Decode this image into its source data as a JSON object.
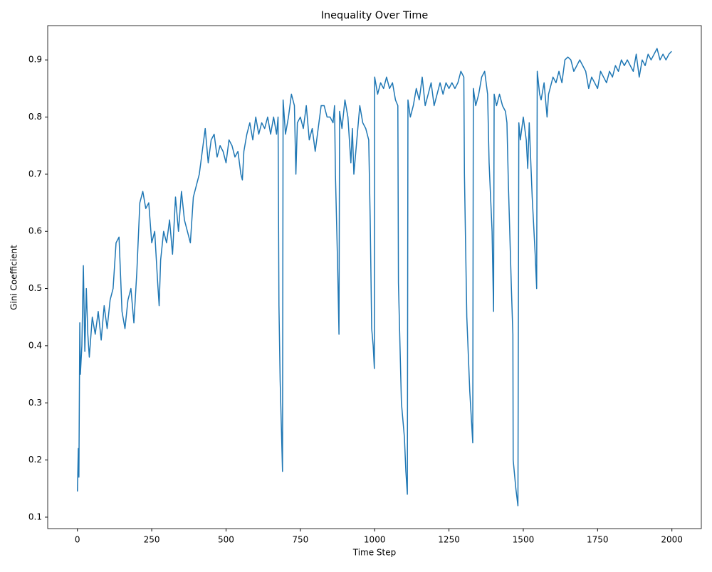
{
  "chart_data": {
    "type": "line",
    "title": "Inequality Over Time",
    "x_label": "Time Step",
    "y_label": "Gini Coefficient",
    "xlim": [
      -99.95,
      2098.95
    ],
    "ylim": [
      0.08,
      0.96
    ],
    "xticks": [
      0,
      250,
      500,
      750,
      1000,
      1250,
      1500,
      1750,
      2000
    ],
    "yticks": [
      0.1,
      0.2,
      0.3,
      0.4,
      0.5,
      0.6,
      0.7,
      0.8,
      0.9
    ],
    "series": [
      {
        "color": "#1f77b4",
        "x": [
          0,
          3,
          5,
          8,
          10,
          15,
          20,
          25,
          30,
          35,
          40,
          50,
          60,
          70,
          80,
          90,
          100,
          110,
          120,
          130,
          140,
          150,
          160,
          170,
          180,
          190,
          200,
          210,
          220,
          230,
          240,
          250,
          260,
          270,
          275,
          280,
          290,
          300,
          310,
          320,
          330,
          340,
          350,
          360,
          370,
          380,
          390,
          400,
          410,
          420,
          430,
          440,
          450,
          460,
          470,
          480,
          490,
          500,
          510,
          520,
          530,
          540,
          550,
          555,
          560,
          570,
          580,
          590,
          600,
          610,
          620,
          630,
          640,
          650,
          660,
          670,
          675,
          678,
          682,
          690,
          692,
          700,
          710,
          720,
          730,
          735,
          740,
          750,
          760,
          770,
          780,
          790,
          800,
          810,
          820,
          830,
          840,
          850,
          860,
          865,
          868,
          875,
          880,
          882,
          890,
          900,
          910,
          920,
          925,
          930,
          940,
          950,
          960,
          970,
          980,
          985,
          990,
          995,
          999,
          1000,
          1010,
          1020,
          1030,
          1040,
          1050,
          1060,
          1070,
          1078,
          1080,
          1090,
          1100,
          1105,
          1110,
          1112,
          1120,
          1130,
          1140,
          1150,
          1160,
          1170,
          1180,
          1190,
          1200,
          1210,
          1220,
          1230,
          1240,
          1250,
          1260,
          1270,
          1280,
          1290,
          1300,
          1302,
          1310,
          1320,
          1330,
          1332,
          1340,
          1350,
          1360,
          1370,
          1380,
          1385,
          1395,
          1400,
          1402,
          1410,
          1420,
          1430,
          1440,
          1445,
          1450,
          1460,
          1465,
          1466,
          1475,
          1482,
          1485,
          1490,
          1500,
          1510,
          1515,
          1520,
          1530,
          1540,
          1545,
          1547,
          1555,
          1560,
          1570,
          1580,
          1585,
          1600,
          1610,
          1620,
          1630,
          1640,
          1650,
          1660,
          1670,
          1680,
          1690,
          1700,
          1710,
          1720,
          1730,
          1740,
          1750,
          1760,
          1770,
          1780,
          1790,
          1800,
          1810,
          1820,
          1830,
          1840,
          1850,
          1860,
          1870,
          1880,
          1890,
          1900,
          1910,
          1920,
          1930,
          1940,
          1950,
          1960,
          1970,
          1980,
          1990,
          1999
        ],
        "values": [
          0.145,
          0.22,
          0.17,
          0.44,
          0.35,
          0.4,
          0.54,
          0.39,
          0.5,
          0.42,
          0.38,
          0.45,
          0.42,
          0.46,
          0.41,
          0.47,
          0.43,
          0.48,
          0.5,
          0.58,
          0.59,
          0.46,
          0.43,
          0.48,
          0.5,
          0.44,
          0.53,
          0.65,
          0.67,
          0.64,
          0.65,
          0.58,
          0.6,
          0.51,
          0.47,
          0.55,
          0.6,
          0.58,
          0.62,
          0.56,
          0.66,
          0.6,
          0.67,
          0.62,
          0.6,
          0.58,
          0.66,
          0.68,
          0.7,
          0.74,
          0.78,
          0.72,
          0.76,
          0.77,
          0.73,
          0.75,
          0.74,
          0.72,
          0.76,
          0.75,
          0.73,
          0.74,
          0.7,
          0.69,
          0.74,
          0.77,
          0.79,
          0.76,
          0.8,
          0.77,
          0.79,
          0.78,
          0.8,
          0.77,
          0.8,
          0.77,
          0.8,
          0.47,
          0.34,
          0.18,
          0.83,
          0.77,
          0.8,
          0.84,
          0.82,
          0.7,
          0.79,
          0.8,
          0.78,
          0.82,
          0.76,
          0.78,
          0.74,
          0.78,
          0.82,
          0.82,
          0.8,
          0.8,
          0.79,
          0.82,
          0.7,
          0.55,
          0.42,
          0.81,
          0.78,
          0.83,
          0.8,
          0.72,
          0.78,
          0.7,
          0.76,
          0.82,
          0.79,
          0.78,
          0.76,
          0.62,
          0.43,
          0.4,
          0.36,
          0.87,
          0.84,
          0.86,
          0.85,
          0.87,
          0.85,
          0.86,
          0.83,
          0.82,
          0.51,
          0.3,
          0.24,
          0.18,
          0.14,
          0.83,
          0.8,
          0.82,
          0.85,
          0.83,
          0.87,
          0.82,
          0.84,
          0.86,
          0.82,
          0.84,
          0.86,
          0.84,
          0.86,
          0.85,
          0.86,
          0.85,
          0.86,
          0.88,
          0.87,
          0.7,
          0.45,
          0.32,
          0.23,
          0.85,
          0.82,
          0.84,
          0.87,
          0.88,
          0.84,
          0.72,
          0.6,
          0.46,
          0.84,
          0.82,
          0.84,
          0.82,
          0.81,
          0.79,
          0.68,
          0.5,
          0.42,
          0.2,
          0.15,
          0.12,
          0.79,
          0.76,
          0.8,
          0.76,
          0.71,
          0.79,
          0.66,
          0.56,
          0.5,
          0.88,
          0.84,
          0.83,
          0.86,
          0.8,
          0.84,
          0.87,
          0.86,
          0.88,
          0.86,
          0.9,
          0.905,
          0.9,
          0.88,
          0.89,
          0.9,
          0.89,
          0.88,
          0.85,
          0.87,
          0.86,
          0.85,
          0.88,
          0.87,
          0.86,
          0.88,
          0.87,
          0.89,
          0.88,
          0.9,
          0.89,
          0.9,
          0.89,
          0.88,
          0.91,
          0.87,
          0.9,
          0.89,
          0.91,
          0.9,
          0.91,
          0.92,
          0.9,
          0.91,
          0.9,
          0.91,
          0.915
        ]
      }
    ]
  }
}
